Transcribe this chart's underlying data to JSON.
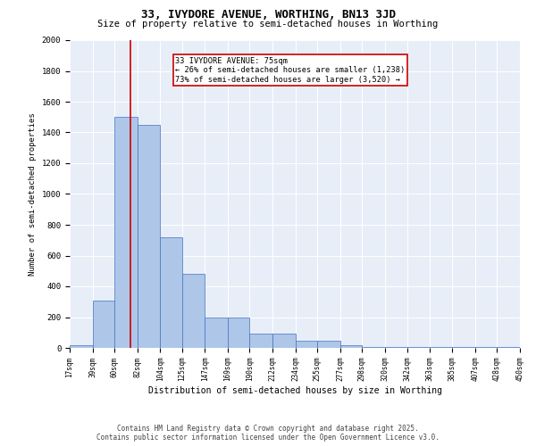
{
  "title1": "33, IVYDORE AVENUE, WORTHING, BN13 3JD",
  "title2": "Size of property relative to semi-detached houses in Worthing",
  "xlabel": "Distribution of semi-detached houses by size in Worthing",
  "ylabel": "Number of semi-detached properties",
  "bar_edges": [
    17,
    39,
    60,
    82,
    104,
    125,
    147,
    169,
    190,
    212,
    234,
    255,
    277,
    298,
    320,
    342,
    363,
    385,
    407,
    428,
    450
  ],
  "bar_heights": [
    20,
    310,
    1500,
    1450,
    720,
    480,
    195,
    195,
    90,
    90,
    45,
    45,
    20,
    5,
    5,
    5,
    5,
    5,
    5,
    5,
    0
  ],
  "bar_color": "#aec6e8",
  "bar_edge_color": "#4472c4",
  "red_line_x": 75,
  "annotation_title": "33 IVYDORE AVENUE: 75sqm",
  "annotation_line1": "← 26% of semi-detached houses are smaller (1,238)",
  "annotation_line2": "73% of semi-detached houses are larger (3,520) →",
  "annotation_box_color": "#ffffff",
  "annotation_box_edge": "#cc0000",
  "red_line_color": "#cc0000",
  "ylim": [
    0,
    2000
  ],
  "yticks": [
    0,
    200,
    400,
    600,
    800,
    1000,
    1200,
    1400,
    1600,
    1800,
    2000
  ],
  "bg_color": "#e8eef8",
  "footer1": "Contains HM Land Registry data © Crown copyright and database right 2025.",
  "footer2": "Contains public sector information licensed under the Open Government Licence v3.0.",
  "tick_labels": [
    "17sqm",
    "39sqm",
    "60sqm",
    "82sqm",
    "104sqm",
    "125sqm",
    "147sqm",
    "169sqm",
    "190sqm",
    "212sqm",
    "234sqm",
    "255sqm",
    "277sqm",
    "298sqm",
    "320sqm",
    "342sqm",
    "363sqm",
    "385sqm",
    "407sqm",
    "428sqm",
    "450sqm"
  ]
}
